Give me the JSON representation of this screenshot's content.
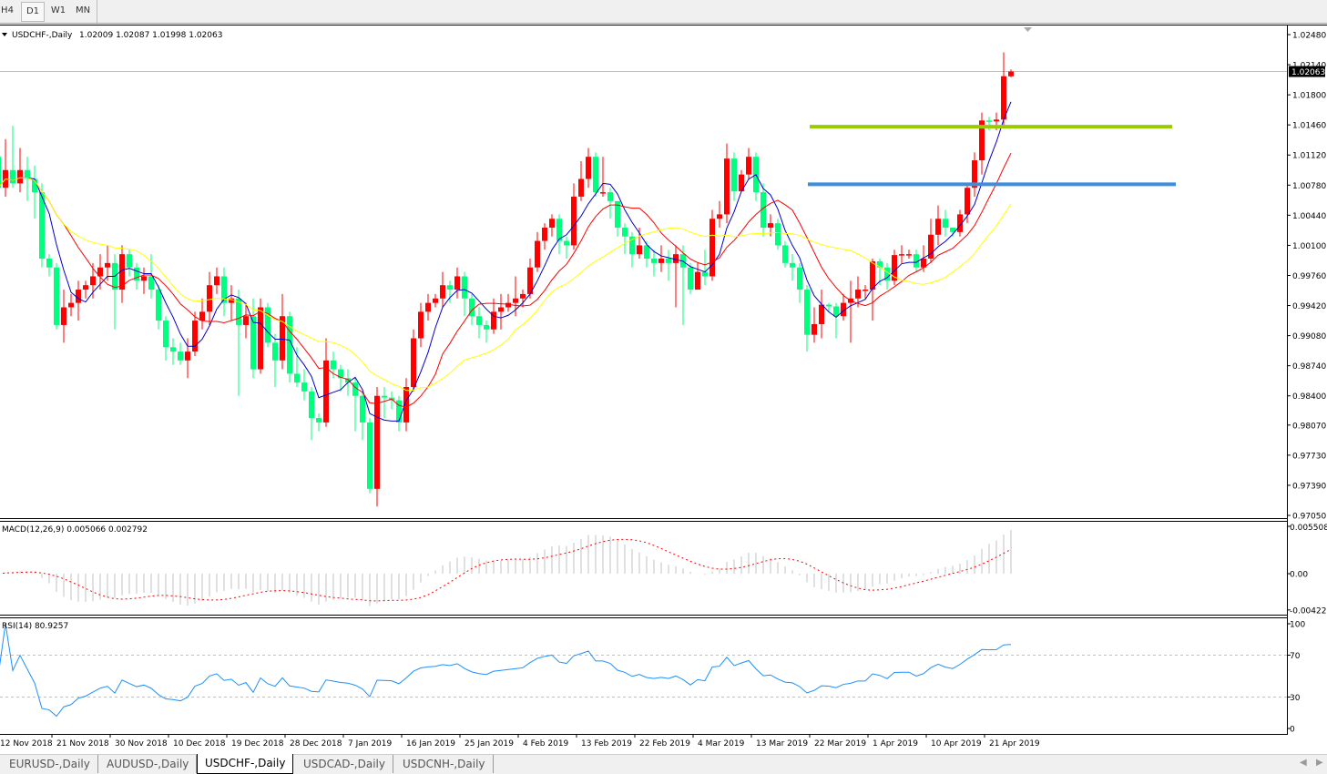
{
  "toolbar": {
    "timeframes": [
      {
        "label": "H4"
      },
      {
        "label": "D1",
        "active": true
      },
      {
        "label": "W1"
      },
      {
        "label": "MN"
      }
    ]
  },
  "chart_title": {
    "symbol": "USDCHF-,Daily",
    "ohlc": "1.02009 1.02087 1.01998 1.02063"
  },
  "chart_data": {
    "type": "candlestick",
    "symbol": "USDCHF-",
    "timeframe": "Daily",
    "price_ticks": [
      "1.02480",
      "1.02140",
      "1.01800",
      "1.01460",
      "1.01120",
      "1.00780",
      "1.00440",
      "1.00100",
      "0.99760",
      "0.99420",
      "0.99080",
      "0.98740",
      "0.98400",
      "0.98070",
      "0.97730",
      "0.97390",
      "0.97050"
    ],
    "ylim": [
      0.9705,
      1.0248
    ],
    "current_price": "1.02063",
    "date_labels": [
      "12 Nov 2018",
      "21 Nov 2018",
      "30 Nov 2018",
      "10 Dec 2018",
      "19 Dec 2018",
      "28 Dec 2018",
      "7 Jan 2019",
      "16 Jan 2019",
      "25 Jan 2019",
      "4 Feb 2019",
      "13 Feb 2019",
      "22 Feb 2019",
      "4 Mar 2019",
      "13 Mar 2019",
      "22 Mar 2019",
      "1 Apr 2019",
      "10 Apr 2019",
      "21 Apr 2019"
    ],
    "first_open": 1.011,
    "close": [
      1.0075,
      1.0095,
      1.008,
      1.0095,
      1.0085,
      1.007,
      0.9995,
      0.9985,
      0.992,
      0.994,
      0.9945,
      0.996,
      0.9965,
      0.9975,
      0.9985,
      0.999,
      0.996,
      1.0,
      0.9985,
      0.997,
      0.9975,
      0.996,
      0.9925,
      0.9895,
      0.989,
      0.988,
      0.989,
      0.9925,
      0.9935,
      0.9965,
      0.9975,
      0.9945,
      0.995,
      0.992,
      0.993,
      0.987,
      0.994,
      0.99,
      0.988,
      0.993,
      0.9865,
      0.9855,
      0.9845,
      0.9815,
      0.981,
      0.988,
      0.987,
      0.986,
      0.9855,
      0.984,
      0.981,
      0.9735,
      0.984,
      0.9838,
      0.9835,
      0.981,
      0.985,
      0.9905,
      0.9935,
      0.9945,
      0.995,
      0.9965,
      0.996,
      0.9975,
      0.995,
      0.993,
      0.992,
      0.9915,
      0.9935,
      0.994,
      0.9945,
      0.995,
      0.9955,
      0.9985,
      1.0015,
      1.003,
      1.004,
      1.0015,
      1.001,
      1.0065,
      1.0085,
      1.011,
      1.007,
      1.007,
      1.006,
      1.003,
      1.002,
      1.0,
      1.001,
      0.9995,
      0.999,
      0.9995,
      0.999,
      1.0,
      0.9985,
      0.996,
      0.998,
      0.9975,
      1.004,
      1.0045,
      1.0108,
      1.0071,
      1.009,
      1.011,
      1.007,
      1.003,
      1.0035,
      1.001,
      0.999,
      0.9985,
      0.996,
      0.9909,
      0.9921,
      0.9943,
      0.9941,
      0.993,
      0.9945,
      0.995,
      0.996,
      0.996,
      0.9992,
      0.9985,
      0.997,
      0.9999,
      1.0,
      1.0,
      0.9985,
      0.9995,
      1.0022,
      1.004,
      1.003,
      1.0025,
      1.0045,
      1.0075,
      1.0106,
      1.0151,
      1.015,
      1.0152,
      1.0201,
      1.02063
    ],
    "high": [
      1.0125,
      1.013,
      1.0145,
      1.012,
      1.011,
      1.01,
      1.008,
      1.0,
      0.999,
      0.996,
      0.9955,
      0.997,
      0.997,
      0.999,
      1.0,
      1.001,
      1.0,
      1.001,
      1.0005,
      0.999,
      0.9985,
      1.0,
      0.9965,
      0.993,
      0.9905,
      0.99,
      0.9905,
      0.9935,
      0.995,
      0.998,
      0.9985,
      0.9985,
      0.9965,
      0.996,
      0.9945,
      0.995,
      0.995,
      0.9945,
      0.991,
      0.9955,
      0.9935,
      0.9895,
      0.987,
      0.985,
      0.982,
      0.9905,
      0.989,
      0.9875,
      0.987,
      0.986,
      0.9845,
      0.9815,
      0.985,
      0.985,
      0.9845,
      0.984,
      0.986,
      0.9915,
      0.9945,
      0.9955,
      0.9955,
      0.998,
      0.997,
      0.9985,
      0.998,
      0.9955,
      0.994,
      0.9925,
      0.995,
      0.9955,
      0.9955,
      0.9975,
      0.996,
      0.9995,
      1.0025,
      1.0035,
      1.0045,
      1.0045,
      1.002,
      1.008,
      1.0105,
      1.012,
      1.0115,
      1.011,
      1.0075,
      1.0055,
      1.0035,
      1.0025,
      1.003,
      1.0015,
      1.0005,
      1.001,
      1.0005,
      1.001,
      1.001,
      0.999,
      0.999,
      1.0005,
      1.005,
      1.006,
      1.0125,
      1.0115,
      1.0095,
      1.012,
      1.0115,
      1.008,
      1.0045,
      1.004,
      1.0015,
      1.0,
      0.999,
      0.9965,
      0.994,
      0.996,
      0.9945,
      0.9945,
      0.9955,
      0.997,
      0.9975,
      0.9965,
      0.9995,
      0.9995,
      0.999,
      1.0005,
      1.001,
      1.0005,
      1.0005,
      1.001,
      1.004,
      1.0055,
      1.005,
      1.003,
      1.005,
      1.008,
      1.0115,
      1.016,
      1.0155,
      1.016,
      1.0228,
      1.02087
    ],
    "low": [
      1.006,
      1.0065,
      1.0075,
      1.007,
      1.006,
      1.004,
      0.9985,
      0.9975,
      0.9915,
      0.99,
      0.993,
      0.9925,
      0.995,
      0.995,
      0.996,
      0.997,
      0.9915,
      0.9945,
      0.9975,
      0.996,
      0.9955,
      0.995,
      0.9915,
      0.988,
      0.9875,
      0.9875,
      0.986,
      0.9885,
      0.9915,
      0.992,
      0.9955,
      0.993,
      0.9925,
      0.984,
      0.9905,
      0.986,
      0.9865,
      0.9895,
      0.985,
      0.987,
      0.9855,
      0.985,
      0.9835,
      0.979,
      0.98,
      0.9805,
      0.986,
      0.9845,
      0.984,
      0.98,
      0.979,
      0.973,
      0.9715,
      0.9815,
      0.9825,
      0.98,
      0.98,
      0.9845,
      0.9895,
      0.9925,
      0.994,
      0.994,
      0.9945,
      0.995,
      0.993,
      0.992,
      0.9905,
      0.99,
      0.991,
      0.9915,
      0.9935,
      0.993,
      0.994,
      0.995,
      0.998,
      1.0005,
      1.002,
      1.0,
      0.9995,
      1.0005,
      1.006,
      1.0075,
      1.0065,
      1.0065,
      1.004,
      1.002,
      1.0,
      0.9985,
      0.9995,
      0.9985,
      0.9975,
      0.998,
      0.997,
      0.994,
      0.992,
      0.9955,
      0.997,
      0.9965,
      0.997,
      1.003,
      1.0035,
      1.006,
      1.007,
      1.0085,
      1.006,
      1.002,
      1.002,
      1.0005,
      0.9985,
      0.997,
      0.9945,
      0.989,
      0.99,
      0.9905,
      0.9935,
      0.9905,
      0.9925,
      0.99,
      0.994,
      0.995,
      0.9925,
      0.9965,
      0.996,
      0.9965,
      0.999,
      0.9995,
      0.998,
      0.998,
      0.999,
      1.001,
      1.002,
      1.002,
      1.002,
      1.0035,
      1.0065,
      1.009,
      1.014,
      1.014,
      1.0145,
      1.01998
    ],
    "last_open": 1.02009,
    "moving_averages": [
      {
        "color": "#0000cc",
        "period": 5
      },
      {
        "color": "#ff0000",
        "period": 10
      },
      {
        "color": "#ffff00",
        "period": 20
      }
    ],
    "bull_color": "#ff0000",
    "bear_color": "#00ff7f",
    "horizontal_lines": [
      {
        "price": 1.0144,
        "color": "#99cc00"
      },
      {
        "price": 1.0079,
        "color": "#3c8fdc"
      }
    ]
  },
  "macd": {
    "label": "MACD(12,26,9) 0.005066 0.002792",
    "ticks": [
      "0.005508",
      "0.00",
      "-0.004221"
    ],
    "max": 0.005508,
    "min": -0.004221,
    "hist_color": "#c0c0c0",
    "signal_color": "#ff0000"
  },
  "rsi": {
    "label": "RSI(14) 80.9257",
    "ticks": [
      "100",
      "70",
      "30",
      "0"
    ],
    "levels": [
      70,
      30
    ],
    "color": "#1e90ff"
  },
  "tabs": [
    {
      "label": "EURUSD-,Daily"
    },
    {
      "label": "AUDUSD-,Daily"
    },
    {
      "label": "USDCHF-,Daily",
      "active": true
    },
    {
      "label": "USDCAD-,Daily"
    },
    {
      "label": "USDCNH-,Daily"
    }
  ]
}
